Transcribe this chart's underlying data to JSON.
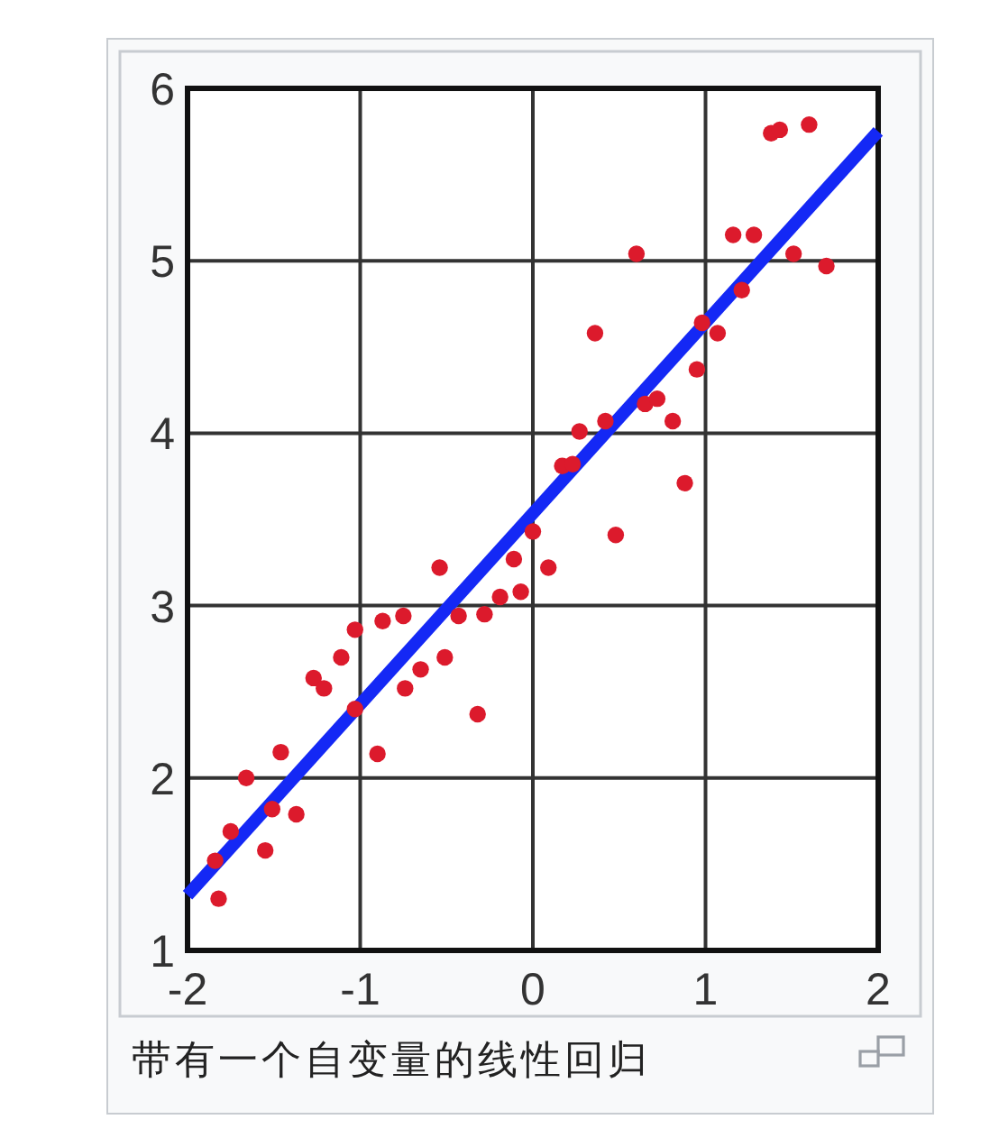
{
  "chart_data": {
    "type": "scatter",
    "xlim": [
      -2,
      2
    ],
    "ylim": [
      1,
      6
    ],
    "xticks": [
      -2,
      -1,
      0,
      1,
      2
    ],
    "yticks": [
      1,
      2,
      3,
      4,
      5,
      6
    ],
    "grid": true,
    "annotations": [
      "带有一个自变量的线性回归"
    ],
    "series": [
      {
        "type": "line",
        "color": "#1428f5",
        "line_style": "solid",
        "marker": "none",
        "x": [
          -2,
          2
        ],
        "values": [
          1.32,
          5.75
        ]
      },
      {
        "color": "#dc1a2c",
        "marker": "circle",
        "x": [
          -1.82,
          -1.84,
          -1.75,
          -1.66,
          -1.55,
          -1.51,
          -1.46,
          -1.37,
          -1.27,
          -1.21,
          -1.11,
          -1.03,
          -1.03,
          -0.9,
          -0.87,
          -0.75,
          -0.74,
          -0.65,
          -0.54,
          -0.51,
          -0.43,
          -0.32,
          -0.28,
          -0.19,
          -0.11,
          -0.07,
          0.0,
          0.09,
          0.17,
          0.23,
          0.27,
          0.36,
          0.42,
          0.48,
          0.6,
          0.65,
          0.72,
          0.81,
          0.88,
          0.95,
          0.98,
          1.07,
          1.16,
          1.21,
          1.28,
          1.38,
          1.43,
          1.51,
          1.6,
          1.7
        ],
        "values": [
          1.3,
          1.52,
          1.69,
          2.0,
          1.58,
          1.82,
          2.15,
          1.79,
          2.58,
          2.52,
          2.7,
          2.86,
          2.4,
          2.14,
          2.91,
          2.94,
          2.52,
          2.63,
          3.22,
          2.7,
          2.94,
          2.37,
          2.95,
          3.05,
          3.27,
          3.08,
          3.43,
          3.22,
          3.81,
          3.82,
          4.01,
          4.58,
          4.07,
          3.41,
          5.04,
          4.17,
          4.2,
          4.07,
          3.71,
          4.37,
          4.64,
          4.58,
          5.15,
          4.83,
          5.15,
          5.74,
          5.76,
          5.04,
          5.79,
          4.97
        ]
      }
    ]
  }
}
